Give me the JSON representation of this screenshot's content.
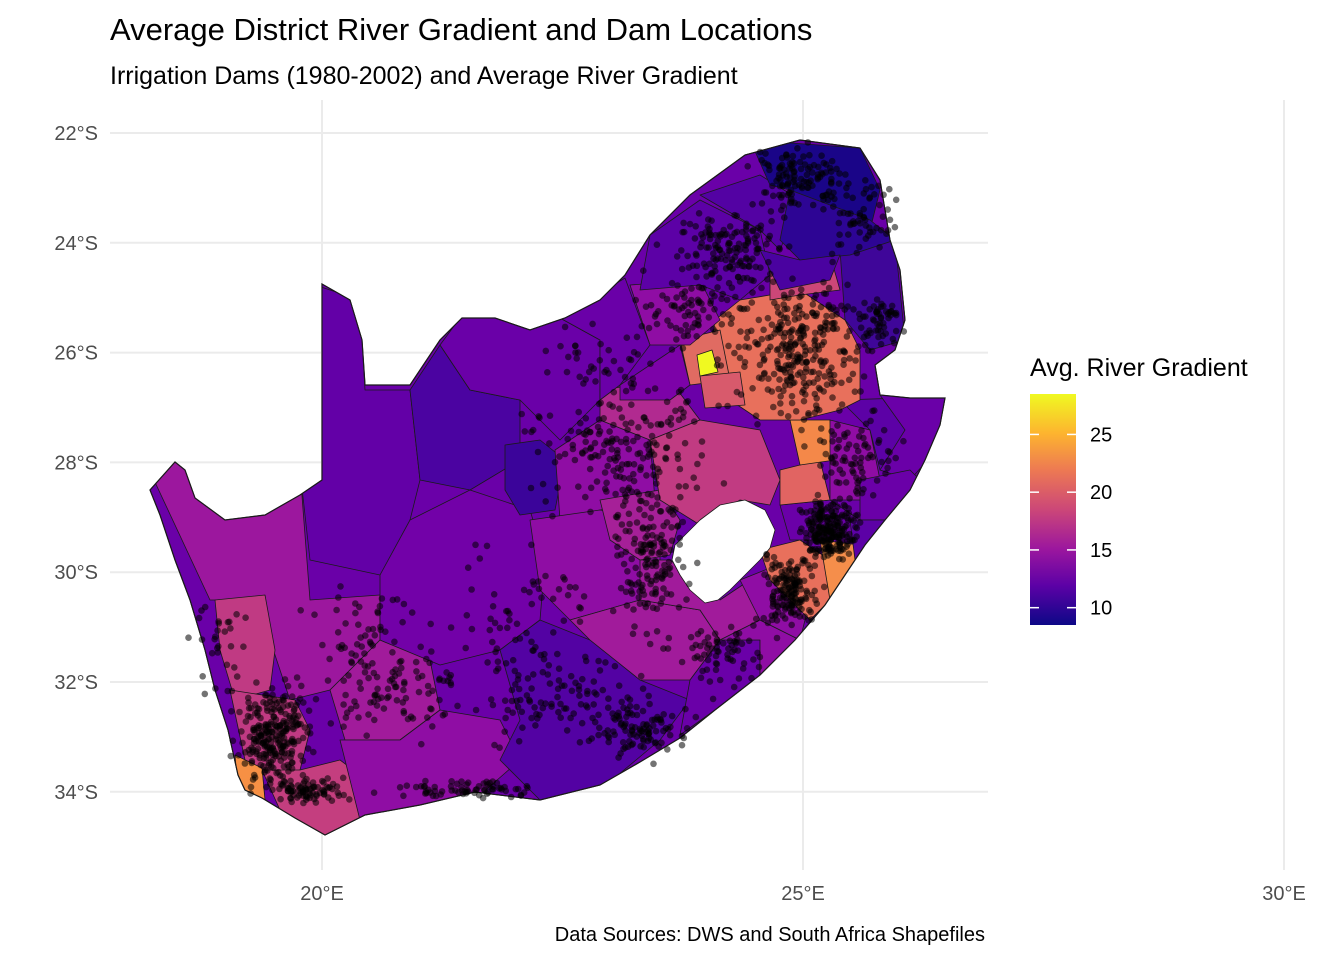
{
  "title": "Average District River Gradient and Dam Locations",
  "subtitle": "Irrigation Dams (1980-2002) and Average River Gradient",
  "caption": "Data Sources: DWS and South Africa Shapefiles",
  "legend": {
    "title": "Avg. River Gradient",
    "breaks": [
      "25",
      "20",
      "15",
      "10"
    ],
    "break_values": [
      25,
      20,
      15,
      10
    ],
    "range": [
      8.5,
      28.5
    ],
    "palette": [
      "#0d0887",
      "#5c01a6",
      "#9c179e",
      "#cc4778",
      "#ed7953",
      "#fdb42f",
      "#f0f921"
    ],
    "placement": "right"
  },
  "axes": {
    "x_labels": [
      "20°E",
      "25°E",
      "30°E"
    ],
    "x_values": [
      20,
      25,
      30
    ],
    "y_labels": [
      "22°S",
      "24°S",
      "26°S",
      "28°S",
      "30°S",
      "32°S",
      "34°S"
    ],
    "y_values": [
      -22,
      -24,
      -26,
      -28,
      -30,
      -32,
      -34
    ],
    "xlim": [
      16.0,
      33.6
    ],
    "ylim": [
      -35.3,
      -21.5
    ],
    "grid": true
  },
  "colors": {
    "grid": "#ebebeb",
    "axis_text": "#4d4d4d",
    "dam_points": "#000000",
    "lesotho_hole": "#ffffff"
  }
}
